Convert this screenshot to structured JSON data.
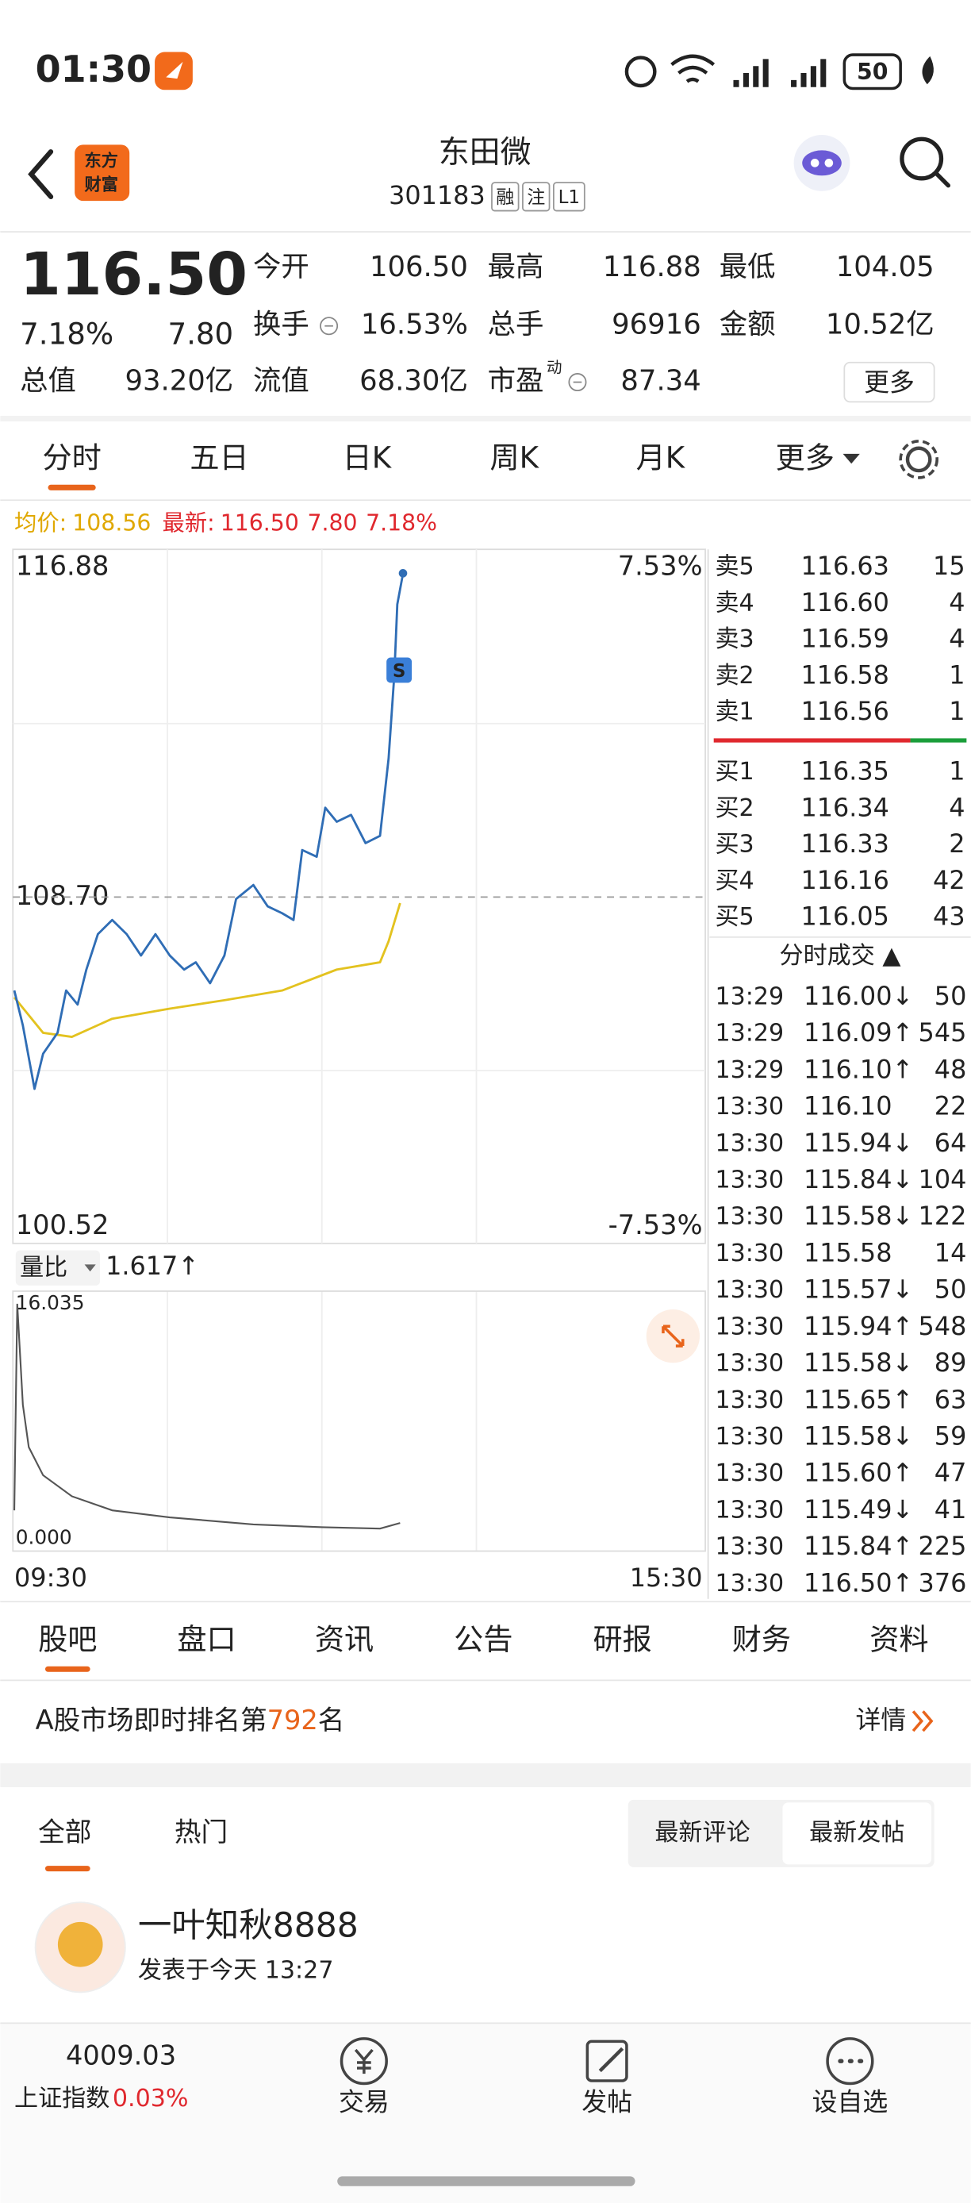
{
  "status_bar": {
    "time": "01:30",
    "battery": "50"
  },
  "header": {
    "logo": [
      "东方",
      "财富"
    ],
    "title": "东田微",
    "code": "301183",
    "badges": [
      "融",
      "注",
      "L1"
    ]
  },
  "quote": {
    "price": "116.50",
    "change_pct": "7.18%",
    "change": "7.80",
    "fields": [
      {
        "label": "今开",
        "value": "106.50",
        "color": "#1a9e3a"
      },
      {
        "label": "最高",
        "value": "116.88",
        "color": "#e0282e"
      },
      {
        "label": "最低",
        "value": "104.05",
        "color": "#1a9e3a"
      },
      {
        "label": "换手",
        "value": "16.53%"
      },
      {
        "label": "总手",
        "value": "96916"
      },
      {
        "label": "金额",
        "value": "10.52亿"
      },
      {
        "label": "总值",
        "value": "93.20亿"
      },
      {
        "label": "流值",
        "value": "68.30亿"
      },
      {
        "label": "市盈",
        "sup": "动",
        "value": "87.34"
      }
    ],
    "more": "更多"
  },
  "tabs": {
    "items": [
      "分时",
      "五日",
      "日K",
      "周K",
      "月K",
      "更多"
    ],
    "active": 0
  },
  "info": {
    "avg_label": "均价:",
    "avg": "108.56",
    "latest_label": "最新:",
    "latest": [
      "116.50",
      "7.80",
      "7.18%"
    ]
  },
  "chart": {
    "type": "line",
    "xlim": [
      0,
      240
    ],
    "xticks": [
      {
        "value": 0,
        "label": "09:30"
      },
      {
        "value": 240,
        "label": "15:30"
      }
    ],
    "ylim": [
      100.52,
      116.88
    ],
    "yticks": [
      116.88,
      {
        "value": 108.7,
        "label": "108.70"
      },
      100.52
    ],
    "pct_labels": [
      "7.53%",
      "-7.53%"
    ],
    "marker": "S",
    "series": [
      {
        "color": "#2f6db5",
        "x": [
          0,
          3,
          7,
          10,
          15,
          18,
          22,
          25,
          29,
          34,
          39,
          44,
          49,
          54,
          59,
          63,
          68,
          73,
          77,
          83,
          88,
          93,
          97,
          100,
          105,
          108,
          112,
          117,
          122,
          127,
          130,
          132,
          133,
          135
        ],
        "values": [
          106.38,
          105.51,
          103.94,
          104.81,
          105.33,
          106.38,
          106.03,
          106.9,
          107.78,
          108.13,
          107.78,
          107.25,
          107.78,
          107.25,
          106.9,
          107.08,
          106.56,
          107.25,
          108.65,
          109.0,
          108.47,
          108.3,
          108.13,
          109.87,
          109.7,
          110.92,
          110.57,
          110.74,
          110.04,
          110.22,
          112.14,
          114.23,
          115.97,
          116.74
        ]
      },
      {
        "color": "#e3c21f",
        "x": [
          0,
          10,
          20,
          34,
          54,
          73,
          93,
          112,
          127,
          130,
          134
        ],
        "values": [
          106.21,
          105.33,
          105.23,
          105.68,
          105.93,
          106.14,
          106.38,
          106.9,
          107.08,
          107.6,
          108.55
        ]
      }
    ]
  },
  "volume_ratio": {
    "type": "line",
    "label": "量比",
    "value": "1.617↑",
    "ylim": [
      0,
      16.035
    ],
    "yticks": [
      16.035,
      {
        "value": 0,
        "label": "0.000"
      }
    ],
    "color": "#555555",
    "x": [
      0,
      1,
      3,
      5,
      10,
      20,
      34,
      54,
      83,
      107,
      127,
      134
    ],
    "values": [
      1.92,
      16.035,
      9.13,
      6.24,
      4.32,
      2.88,
      1.92,
      1.44,
      0.96,
      0.77,
      0.67,
      1.06
    ]
  },
  "order_book": {
    "sells": [
      {
        "label": "卖5",
        "price": "116.63",
        "volume": "15"
      },
      {
        "label": "卖4",
        "price": "116.60",
        "volume": "4"
      },
      {
        "label": "卖3",
        "price": "116.59",
        "volume": "4"
      },
      {
        "label": "卖2",
        "price": "116.58",
        "volume": "1"
      },
      {
        "label": "卖1",
        "price": "116.56",
        "volume": "1"
      }
    ],
    "buys": [
      {
        "label": "买1",
        "price": "116.35",
        "volume": "1"
      },
      {
        "label": "买2",
        "price": "116.34",
        "volume": "4"
      },
      {
        "label": "买3",
        "price": "116.33",
        "volume": "2"
      },
      {
        "label": "买4",
        "price": "116.16",
        "volume": "42"
      },
      {
        "label": "买5",
        "price": "116.05",
        "volume": "43"
      }
    ],
    "trades_title": "分时成交 ▲",
    "trades": [
      {
        "time": "13:29",
        "price": "116.00↓",
        "volume": "50"
      },
      {
        "time": "13:29",
        "price": "116.09↑",
        "volume": "545"
      },
      {
        "time": "13:29",
        "price": "116.10↑",
        "volume": "48"
      },
      {
        "time": "13:30",
        "price": "116.10",
        "volume": "22"
      },
      {
        "time": "13:30",
        "price": "115.94↓",
        "volume": "64"
      },
      {
        "time": "13:30",
        "price": "115.84↓",
        "volume": "104"
      },
      {
        "time": "13:30",
        "price": "115.58↓",
        "volume": "122"
      },
      {
        "time": "13:30",
        "price": "115.58",
        "volume": "14"
      },
      {
        "time": "13:30",
        "price": "115.57↓",
        "volume": "50"
      },
      {
        "time": "13:30",
        "price": "115.94↑",
        "volume": "548"
      },
      {
        "time": "13:30",
        "price": "115.58↓",
        "volume": "89"
      },
      {
        "time": "13:30",
        "price": "115.65↑",
        "volume": "63"
      },
      {
        "time": "13:30",
        "price": "115.58↓",
        "volume": "59"
      },
      {
        "time": "13:30",
        "price": "115.60↑",
        "volume": "47"
      },
      {
        "time": "13:30",
        "price": "115.49↓",
        "volume": "41"
      },
      {
        "time": "13:30",
        "price": "115.84↑",
        "volume": "225"
      },
      {
        "time": "13:30",
        "price": "116.50↑",
        "volume": "376"
      }
    ]
  },
  "sections": {
    "items": [
      "股吧",
      "盘口",
      "资讯",
      "公告",
      "研报",
      "财务",
      "资料"
    ],
    "active": 0
  },
  "ranking": {
    "prefix": "A股市场即时排名第",
    "rank": "792",
    "suffix": "名",
    "detail": "详情"
  },
  "forum": {
    "tabs": [
      "全部",
      "热门"
    ],
    "active": 0,
    "sort": [
      "最新评论",
      "最新发帖"
    ],
    "sort_active": 1,
    "post": {
      "user": "一叶知秋8888",
      "time": "发表于今天 13:27"
    }
  },
  "bottom_bar": {
    "index_value": "4009.03",
    "index_name": "上证指数",
    "index_pct": "0.03%",
    "buttons": [
      "交易",
      "发帖",
      "设自选"
    ]
  }
}
